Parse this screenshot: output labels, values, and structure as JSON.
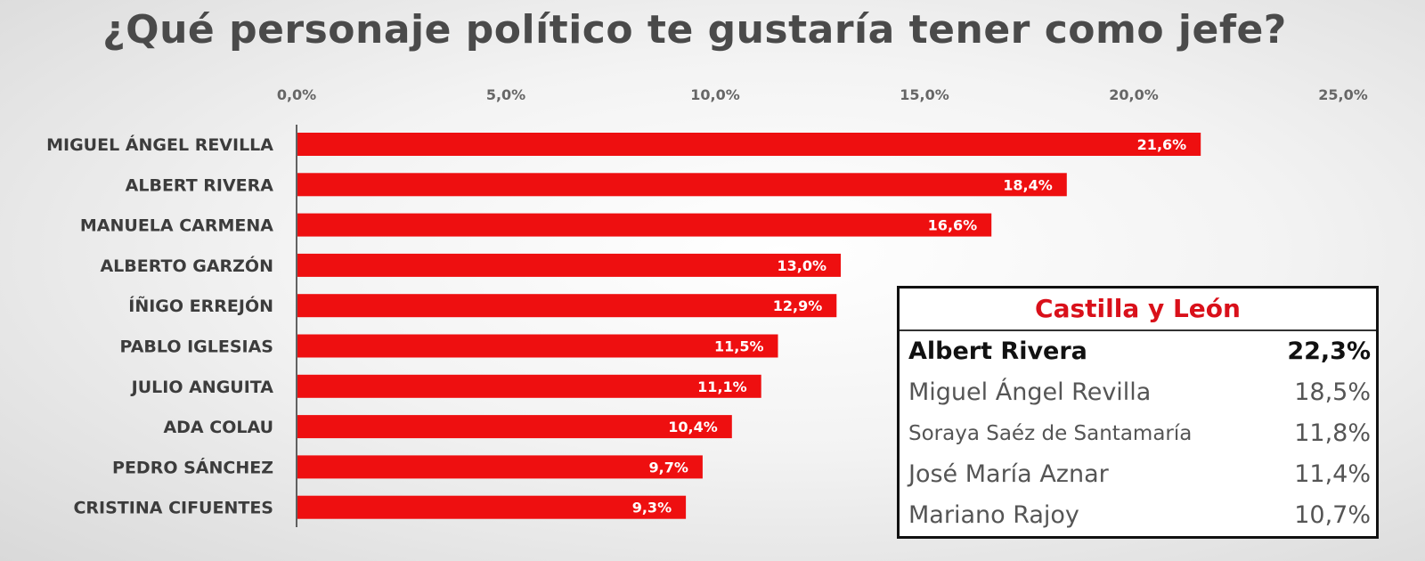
{
  "chart_data": {
    "type": "bar",
    "orientation": "horizontal",
    "title": "¿Qué personaje político te gustaría tener como jefe?",
    "categories": [
      "MIGUEL ÁNGEL REVILLA",
      "ALBERT RIVERA",
      "MANUELA CARMENA",
      "ALBERTO GARZÓN",
      "ÍÑIGO ERREJÓN",
      "PABLO IGLESIAS",
      "JULIO ANGUITA",
      "ADA COLAU",
      "PEDRO SÁNCHEZ",
      "CRISTINA CIFUENTES"
    ],
    "values": [
      21.6,
      18.4,
      16.6,
      13.0,
      12.9,
      11.5,
      11.1,
      10.4,
      9.7,
      9.3
    ],
    "data_labels": [
      "21,6%",
      "18,4%",
      "16,6%",
      "13,0%",
      "12,9%",
      "11,5%",
      "11,1%",
      "10,4%",
      "9,7%",
      "9,3%"
    ],
    "xlim": [
      0,
      25
    ],
    "xticks": [
      0,
      5,
      10,
      15,
      20,
      25
    ],
    "xtick_labels": [
      "0,0%",
      "5,0%",
      "10,0%",
      "15,0%",
      "20,0%",
      "25,0%"
    ],
    "axis_position": "top",
    "grid": false,
    "bar_color": "#ee0f10"
  },
  "inset": {
    "title": "Castilla y León",
    "title_color": "#d9101a",
    "rows": [
      {
        "name": "Albert Rivera",
        "value": "22,3%"
      },
      {
        "name": "Miguel Ángel Revilla",
        "value": "18,5%"
      },
      {
        "name": "Soraya Saéz de Santamaría",
        "value": "11,8%"
      },
      {
        "name": "José María Aznar",
        "value": "11,4%"
      },
      {
        "name": "Mariano Rajoy",
        "value": "10,7%"
      }
    ]
  }
}
